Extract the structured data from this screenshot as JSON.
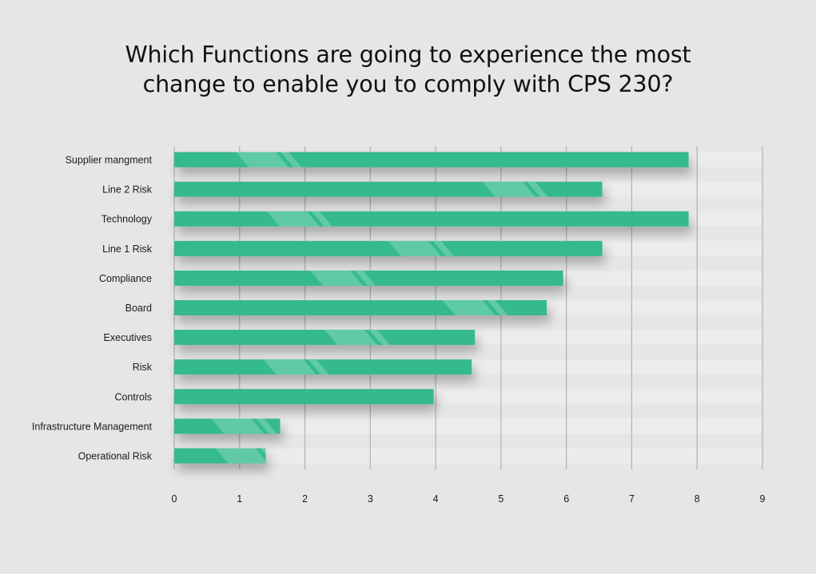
{
  "title_lines": [
    "Which Functions are going to experience the most",
    "change to enable you to comply with CPS 230?"
  ],
  "chart_data": {
    "type": "bar",
    "orientation": "horizontal",
    "title": "Which Functions are going to experience the most change to enable you to comply with CPS 230?",
    "categories": [
      "Supplier mangment",
      "Line 2 Risk",
      "Technology",
      "Line 1 Risk",
      "Compliance",
      "Board",
      "Executives",
      "Risk",
      "Controls",
      "Infrastructure Management",
      "Operational Risk"
    ],
    "values": [
      7.87,
      6.55,
      7.87,
      6.55,
      5.95,
      5.7,
      4.6,
      4.55,
      3.97,
      1.62,
      1.4
    ],
    "xlim": [
      0,
      9
    ],
    "xticks": [
      0,
      1,
      2,
      3,
      4,
      5,
      6,
      7,
      8,
      9
    ],
    "xlabel": "",
    "ylabel": "",
    "grid": "vertical",
    "legend": "none",
    "colors": {
      "bar": "#35b98e",
      "bar_highlight": "#6fd0ae",
      "track": "#ececed",
      "grid": "#9a9a9e",
      "background": "#e6e6e8"
    }
  }
}
